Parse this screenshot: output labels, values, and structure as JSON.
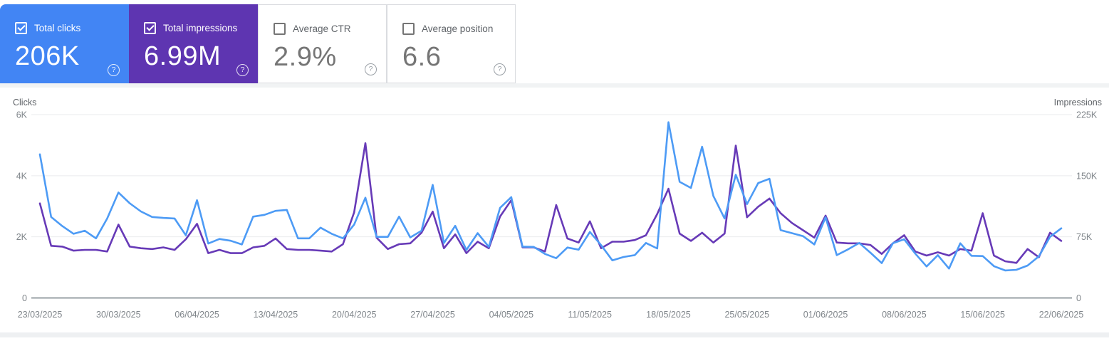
{
  "cards": [
    {
      "label": "Total clicks",
      "value": "206K",
      "checked": true,
      "bg": "#4285f4",
      "text": "#ffffff"
    },
    {
      "label": "Total impressions",
      "value": "6.99M",
      "checked": true,
      "bg": "#5e35b1",
      "text": "#ffffff"
    },
    {
      "label": "Average CTR",
      "value": "2.9%",
      "checked": false,
      "bg": "#ffffff",
      "text": "#757575"
    },
    {
      "label": "Average position",
      "value": "6.6",
      "checked": false,
      "bg": "#ffffff",
      "text": "#757575"
    }
  ],
  "icons": {
    "help_glyph": "?"
  },
  "chart_data": {
    "type": "line",
    "title": "",
    "xlabel": "",
    "x_labels_shown_every_days": 7,
    "categories": [
      "23/03/2025",
      "24/03/2025",
      "25/03/2025",
      "26/03/2025",
      "27/03/2025",
      "28/03/2025",
      "29/03/2025",
      "30/03/2025",
      "31/03/2025",
      "01/04/2025",
      "02/04/2025",
      "03/04/2025",
      "04/04/2025",
      "05/04/2025",
      "06/04/2025",
      "07/04/2025",
      "08/04/2025",
      "09/04/2025",
      "10/04/2025",
      "11/04/2025",
      "12/04/2025",
      "13/04/2025",
      "14/04/2025",
      "15/04/2025",
      "16/04/2025",
      "17/04/2025",
      "18/04/2025",
      "19/04/2025",
      "20/04/2025",
      "21/04/2025",
      "22/04/2025",
      "23/04/2025",
      "24/04/2025",
      "25/04/2025",
      "26/04/2025",
      "27/04/2025",
      "28/04/2025",
      "29/04/2025",
      "30/04/2025",
      "01/05/2025",
      "02/05/2025",
      "03/05/2025",
      "04/05/2025",
      "05/05/2025",
      "06/05/2025",
      "07/05/2025",
      "08/05/2025",
      "09/05/2025",
      "10/05/2025",
      "11/05/2025",
      "12/05/2025",
      "13/05/2025",
      "14/05/2025",
      "15/05/2025",
      "16/05/2025",
      "17/05/2025",
      "18/05/2025",
      "19/05/2025",
      "20/05/2025",
      "21/05/2025",
      "22/05/2025",
      "23/05/2025",
      "24/05/2025",
      "25/05/2025",
      "26/05/2025",
      "27/05/2025",
      "28/05/2025",
      "29/05/2025",
      "30/05/2025",
      "31/05/2025",
      "01/06/2025",
      "02/06/2025",
      "03/06/2025",
      "04/06/2025",
      "05/06/2025",
      "06/06/2025",
      "07/06/2025",
      "08/06/2025",
      "09/06/2025",
      "10/06/2025",
      "11/06/2025",
      "12/06/2025",
      "13/06/2025",
      "14/06/2025",
      "15/06/2025",
      "16/06/2025",
      "17/06/2025",
      "18/06/2025",
      "19/06/2025",
      "20/06/2025",
      "21/06/2025",
      "22/06/2025"
    ],
    "series": [
      {
        "name": "Total clicks",
        "axis": "left",
        "color": "#4d9bf5",
        "values": [
          4700,
          2650,
          2350,
          2100,
          2200,
          1950,
          2600,
          3450,
          3100,
          2830,
          2650,
          2620,
          2600,
          2050,
          3200,
          1780,
          1930,
          1870,
          1750,
          2660,
          2720,
          2850,
          2880,
          1950,
          1950,
          2300,
          2100,
          1950,
          2400,
          3280,
          2000,
          2000,
          2660,
          1980,
          2200,
          3700,
          1800,
          2360,
          1570,
          2120,
          1670,
          2950,
          3300,
          1680,
          1670,
          1440,
          1300,
          1650,
          1580,
          2160,
          1730,
          1230,
          1340,
          1400,
          1800,
          1620,
          5750,
          3800,
          3600,
          4950,
          3340,
          2600,
          4030,
          3070,
          3760,
          3900,
          2220,
          2120,
          2020,
          1750,
          2640,
          1400,
          1590,
          1800,
          1480,
          1140,
          1790,
          1920,
          1450,
          1030,
          1400,
          960,
          1790,
          1380,
          1370,
          1040,
          900,
          920,
          1060,
          1360,
          2000,
          2280
        ]
      },
      {
        "name": "Total impressions",
        "axis": "right",
        "color": "#673ab7",
        "values": [
          116000,
          64000,
          63000,
          58000,
          59000,
          59000,
          57000,
          90000,
          63000,
          61000,
          60000,
          62000,
          59000,
          72000,
          91000,
          55000,
          59000,
          55000,
          55000,
          62000,
          64000,
          73000,
          60000,
          59000,
          59000,
          58000,
          57000,
          66000,
          105000,
          190000,
          74000,
          60000,
          66000,
          67000,
          80000,
          106000,
          61000,
          78000,
          55000,
          69000,
          61000,
          100000,
          120000,
          62000,
          62000,
          57000,
          114000,
          73000,
          68000,
          94000,
          61000,
          69000,
          69000,
          71000,
          77000,
          103000,
          134000,
          79000,
          70000,
          80000,
          68000,
          79000,
          187000,
          99000,
          112000,
          122000,
          104000,
          92000,
          83000,
          74000,
          101000,
          68000,
          67000,
          67000,
          65000,
          54000,
          67000,
          77000,
          57000,
          52000,
          56000,
          52000,
          60000,
          58000,
          104000,
          52000,
          45000,
          43000,
          60000,
          50000,
          80000,
          70000
        ]
      }
    ],
    "y_left": {
      "title": "Clicks",
      "max": 6000,
      "ticks": [
        "0",
        "2K",
        "4K",
        "6K"
      ],
      "tick_values": [
        0,
        2000,
        4000,
        6000
      ]
    },
    "y_right": {
      "title": "Impressions",
      "max": 225000,
      "ticks": [
        "0",
        "75K",
        "150K",
        "225K"
      ],
      "tick_values": [
        0,
        75000,
        150000,
        225000
      ]
    },
    "grid": {
      "grid_color": "#e9ebed",
      "axis_line_color": "#9aa0a6",
      "tick_label_color": "#80868b",
      "header_color": "#5f6368"
    }
  }
}
